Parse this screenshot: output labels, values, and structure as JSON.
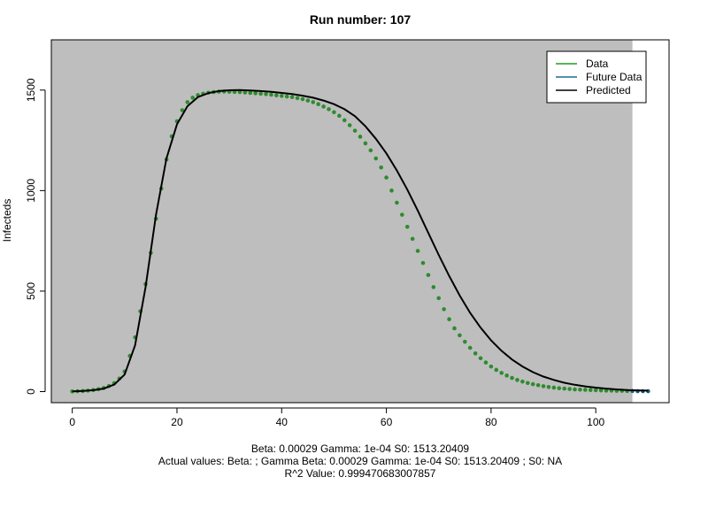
{
  "chart_data": {
    "type": "scatter",
    "title": "Run number:  107",
    "ylabel": "Infecteds",
    "xlabel": "",
    "xlim": [
      -4,
      114
    ],
    "ylim": [
      -55,
      1750
    ],
    "x_ticks": [
      0,
      20,
      40,
      60,
      80,
      100
    ],
    "y_ticks": [
      0,
      500,
      1000,
      1500
    ],
    "shaded_region": {
      "x_start": -4,
      "x_end": 107,
      "color": "#bebebe"
    },
    "legend": {
      "position": "top-right",
      "entries": [
        {
          "label": "Data",
          "color": "#1f9e1f"
        },
        {
          "label": "Future Data",
          "color": "#1a6e8c"
        },
        {
          "label": "Predicted",
          "color": "#000000"
        }
      ]
    },
    "series": [
      {
        "name": "Data",
        "kind": "points",
        "color": "#2e8b2e",
        "x": [
          0,
          1,
          2,
          3,
          4,
          5,
          6,
          7,
          8,
          9,
          10,
          11,
          12,
          13,
          14,
          15,
          16,
          17,
          18,
          19,
          20,
          21,
          22,
          23,
          24,
          25,
          26,
          27,
          28,
          29,
          30,
          31,
          32,
          33,
          34,
          35,
          36,
          37,
          38,
          39,
          40,
          41,
          42,
          43,
          44,
          45,
          46,
          47,
          48,
          49,
          50,
          51,
          52,
          53,
          54,
          55,
          56,
          57,
          58,
          59,
          60,
          61,
          62,
          63,
          64,
          65,
          66,
          67,
          68,
          69,
          70,
          71,
          72,
          73,
          74,
          75,
          76,
          77,
          78,
          79,
          80,
          81,
          82,
          83,
          84,
          85,
          86,
          87,
          88,
          89,
          90,
          91,
          92,
          93,
          94,
          95,
          96,
          97,
          98,
          99,
          100,
          101,
          102,
          103,
          104,
          105,
          106
        ],
        "y": [
          1,
          2,
          3,
          5,
          8,
          12,
          18,
          28,
          42,
          65,
          100,
          178,
          270,
          400,
          535,
          690,
          860,
          1010,
          1155,
          1270,
          1345,
          1400,
          1440,
          1462,
          1475,
          1482,
          1487,
          1490,
          1492,
          1493,
          1492,
          1491,
          1490,
          1488,
          1486,
          1484,
          1482,
          1480,
          1477,
          1474,
          1471,
          1468,
          1465,
          1460,
          1455,
          1448,
          1440,
          1430,
          1418,
          1405,
          1390,
          1372,
          1350,
          1325,
          1298,
          1268,
          1235,
          1200,
          1160,
          1115,
          1065,
          1000,
          940,
          880,
          820,
          760,
          700,
          640,
          580,
          520,
          465,
          410,
          360,
          315,
          280,
          248,
          218,
          190,
          166,
          145,
          125,
          108,
          93,
          80,
          68,
          58,
          50,
          43,
          37,
          32,
          27,
          23,
          20,
          17,
          15,
          13,
          11,
          10,
          9,
          8,
          7,
          6,
          5,
          5,
          4,
          4,
          3
        ]
      },
      {
        "name": "Future Data",
        "kind": "points",
        "color": "#1a5f7a",
        "x": [
          107,
          108,
          109,
          110
        ],
        "y": [
          3,
          2,
          2,
          2
        ]
      },
      {
        "name": "Predicted",
        "kind": "line",
        "color": "#000000",
        "x": [
          0,
          2,
          4,
          6,
          8,
          10,
          12,
          14,
          16,
          18,
          20,
          22,
          24,
          26,
          28,
          30,
          32,
          34,
          36,
          38,
          40,
          42,
          44,
          46,
          48,
          50,
          52,
          54,
          56,
          58,
          60,
          62,
          64,
          66,
          68,
          70,
          72,
          74,
          76,
          78,
          80,
          82,
          84,
          86,
          88,
          90,
          92,
          94,
          96,
          98,
          100,
          102,
          104,
          106,
          108,
          110
        ],
        "y": [
          1,
          3,
          7,
          15,
          35,
          85,
          230,
          520,
          880,
          1160,
          1330,
          1420,
          1465,
          1485,
          1495,
          1499,
          1500,
          1498,
          1495,
          1491,
          1486,
          1480,
          1472,
          1462,
          1448,
          1430,
          1405,
          1370,
          1320,
          1258,
          1185,
          1100,
          1005,
          900,
          790,
          680,
          575,
          478,
          392,
          318,
          255,
          203,
          160,
          125,
          97,
          75,
          58,
          44,
          34,
          26,
          20,
          15,
          11,
          8,
          6,
          5
        ]
      }
    ],
    "annotations": [
      "Beta:  0.00029 Gamma:  1e-04 S0:  1513.20409",
      "Actual values: Beta:    ; Gamma  Beta:  0.00029 Gamma:  1e-04 S0:  1513.20409 ; S0:  NA",
      "R^2 Value:  0.999470683007857"
    ]
  }
}
